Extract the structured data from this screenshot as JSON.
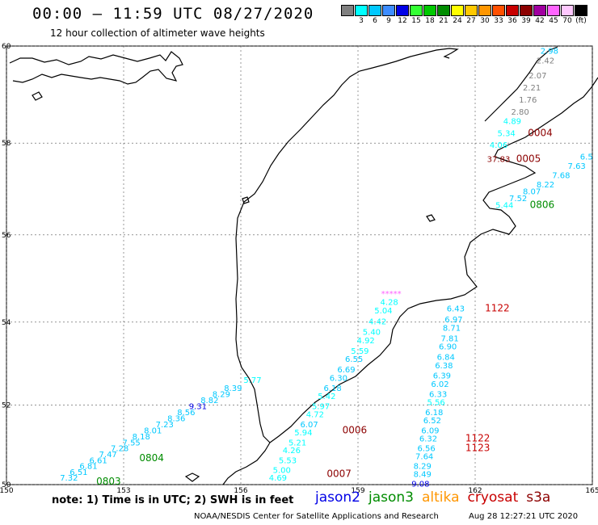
{
  "header": {
    "title": "00:00 – 11:59 UTC 08/27/2020",
    "subtitle": "12 hour collection of altimeter wave heights"
  },
  "color_scale": {
    "swatches": [
      {
        "label": "",
        "color": "#808080"
      },
      {
        "label": "3",
        "color": "#00ffff"
      },
      {
        "label": "6",
        "color": "#00c8ff"
      },
      {
        "label": "9",
        "color": "#3c8cff"
      },
      {
        "label": "12",
        "color": "#0000e6"
      },
      {
        "label": "15",
        "color": "#32ff32"
      },
      {
        "label": "18",
        "color": "#00c800"
      },
      {
        "label": "21",
        "color": "#008c00"
      },
      {
        "label": "24",
        "color": "#ffff00"
      },
      {
        "label": "27",
        "color": "#ffc800"
      },
      {
        "label": "30",
        "color": "#ff9600"
      },
      {
        "label": "33",
        "color": "#ff5000"
      },
      {
        "label": "36",
        "color": "#c80000"
      },
      {
        "label": "39",
        "color": "#8c0000"
      },
      {
        "label": "42",
        "color": "#a000a0"
      },
      {
        "label": "45",
        "color": "#ff64ff"
      },
      {
        "label": "70",
        "color": "#ffc8ff"
      },
      {
        "label": "(ft)",
        "color": "#000000"
      }
    ]
  },
  "map": {
    "lon_ticks": [
      "150",
      "153",
      "156",
      "159",
      "162",
      "165"
    ],
    "lat_ticks": [
      "60",
      "58",
      "56",
      "54",
      "52",
      "50"
    ],
    "measurements": [
      {
        "t": "2.98",
        "lon": 163.9,
        "lat": 59.85,
        "c": "#00c8ff"
      },
      {
        "t": "2.42",
        "lon": 163.8,
        "lat": 59.65,
        "c": "#808080"
      },
      {
        "t": "2.07",
        "lon": 163.6,
        "lat": 59.35,
        "c": "#808080"
      },
      {
        "t": "2.21",
        "lon": 163.45,
        "lat": 59.1,
        "c": "#808080"
      },
      {
        "t": "1.76",
        "lon": 163.35,
        "lat": 58.85,
        "c": "#808080"
      },
      {
        "t": "2.80",
        "lon": 163.15,
        "lat": 58.6,
        "c": "#808080"
      },
      {
        "t": "4.89",
        "lon": 162.95,
        "lat": 58.4,
        "c": "#00ffff"
      },
      {
        "t": "5.34",
        "lon": 162.8,
        "lat": 58.15,
        "c": "#00ffff"
      },
      {
        "t": "4.06",
        "lon": 162.6,
        "lat": 57.9,
        "c": "#00ffff"
      },
      {
        "t": "37.83",
        "lon": 162.6,
        "lat": 57.6,
        "c": "#8c0000"
      },
      {
        "t": "6.5",
        "lon": 164.85,
        "lat": 57.65,
        "c": "#00c8ff"
      },
      {
        "t": "7.63",
        "lon": 164.6,
        "lat": 57.45,
        "c": "#00c8ff"
      },
      {
        "t": "7.68",
        "lon": 164.2,
        "lat": 57.25,
        "c": "#00c8ff"
      },
      {
        "t": "8.22",
        "lon": 163.8,
        "lat": 57.05,
        "c": "#00c8ff"
      },
      {
        "t": "8.07",
        "lon": 163.45,
        "lat": 56.9,
        "c": "#00c8ff"
      },
      {
        "t": "7.52",
        "lon": 163.1,
        "lat": 56.75,
        "c": "#00c8ff"
      },
      {
        "t": "5.44",
        "lon": 162.75,
        "lat": 56.6,
        "c": "#00ffff"
      },
      {
        "t": "*****",
        "lon": 159.85,
        "lat": 54.6,
        "c": "#ff64ff"
      },
      {
        "t": "4.28",
        "lon": 159.8,
        "lat": 54.4,
        "c": "#00ffff"
      },
      {
        "t": "5.04",
        "lon": 159.65,
        "lat": 54.2,
        "c": "#00ffff"
      },
      {
        "t": "4.42",
        "lon": 159.5,
        "lat": 53.95,
        "c": "#00ffff"
      },
      {
        "t": "5.40",
        "lon": 159.35,
        "lat": 53.7,
        "c": "#00ffff"
      },
      {
        "t": "4.92",
        "lon": 159.2,
        "lat": 53.5,
        "c": "#00ffff"
      },
      {
        "t": "5.59",
        "lon": 159.05,
        "lat": 53.25,
        "c": "#00ffff"
      },
      {
        "t": "6.55",
        "lon": 158.9,
        "lat": 53.05,
        "c": "#00c8ff"
      },
      {
        "t": "6.69",
        "lon": 158.7,
        "lat": 52.8,
        "c": "#00c8ff"
      },
      {
        "t": "6.30",
        "lon": 158.5,
        "lat": 52.6,
        "c": "#00c8ff"
      },
      {
        "t": "6.18",
        "lon": 158.35,
        "lat": 52.35,
        "c": "#00c8ff"
      },
      {
        "t": "5.42",
        "lon": 158.2,
        "lat": 52.15,
        "c": "#00ffff"
      },
      {
        "t": "5.97",
        "lon": 158.05,
        "lat": 51.9,
        "c": "#00ffff"
      },
      {
        "t": "4.72",
        "lon": 157.9,
        "lat": 51.7,
        "c": "#00ffff"
      },
      {
        "t": "6.07",
        "lon": 157.75,
        "lat": 51.45,
        "c": "#00c8ff"
      },
      {
        "t": "5.94",
        "lon": 157.6,
        "lat": 51.25,
        "c": "#00ffff"
      },
      {
        "t": "5.21",
        "lon": 157.45,
        "lat": 51.0,
        "c": "#00ffff"
      },
      {
        "t": "4.26",
        "lon": 157.3,
        "lat": 50.8,
        "c": "#00ffff"
      },
      {
        "t": "5.53",
        "lon": 157.2,
        "lat": 50.55,
        "c": "#00ffff"
      },
      {
        "t": "5.00",
        "lon": 157.05,
        "lat": 50.3,
        "c": "#00ffff"
      },
      {
        "t": "4.69",
        "lon": 156.95,
        "lat": 50.1,
        "c": "#00ffff"
      },
      {
        "t": "6.43",
        "lon": 161.5,
        "lat": 54.25,
        "c": "#00c8ff"
      },
      {
        "t": "6.97",
        "lon": 161.45,
        "lat": 54.0,
        "c": "#00c8ff"
      },
      {
        "t": "8.71",
        "lon": 161.4,
        "lat": 53.8,
        "c": "#00c8ff"
      },
      {
        "t": "7.81",
        "lon": 161.35,
        "lat": 53.55,
        "c": "#00c8ff"
      },
      {
        "t": "6.90",
        "lon": 161.3,
        "lat": 53.35,
        "c": "#00c8ff"
      },
      {
        "t": "6.84",
        "lon": 161.25,
        "lat": 53.1,
        "c": "#00c8ff"
      },
      {
        "t": "6.38",
        "lon": 161.2,
        "lat": 52.9,
        "c": "#00c8ff"
      },
      {
        "t": "6.39",
        "lon": 161.15,
        "lat": 52.65,
        "c": "#00c8ff"
      },
      {
        "t": "6.02",
        "lon": 161.1,
        "lat": 52.45,
        "c": "#00c8ff"
      },
      {
        "t": "6.33",
        "lon": 161.05,
        "lat": 52.2,
        "c": "#00c8ff"
      },
      {
        "t": "5.56",
        "lon": 161.0,
        "lat": 52.0,
        "c": "#00ffff"
      },
      {
        "t": "6.18",
        "lon": 160.95,
        "lat": 51.75,
        "c": "#00c8ff"
      },
      {
        "t": "6.52",
        "lon": 160.9,
        "lat": 51.55,
        "c": "#00c8ff"
      },
      {
        "t": "6.09",
        "lon": 160.85,
        "lat": 51.3,
        "c": "#00c8ff"
      },
      {
        "t": "6.32",
        "lon": 160.8,
        "lat": 51.1,
        "c": "#00c8ff"
      },
      {
        "t": "6.56",
        "lon": 160.75,
        "lat": 50.85,
        "c": "#00c8ff"
      },
      {
        "t": "7.64",
        "lon": 160.7,
        "lat": 50.65,
        "c": "#00c8ff"
      },
      {
        "t": "8.29",
        "lon": 160.65,
        "lat": 50.4,
        "c": "#00c8ff"
      },
      {
        "t": "8.49",
        "lon": 160.65,
        "lat": 50.2,
        "c": "#00c8ff"
      },
      {
        "t": "9.08",
        "lon": 160.6,
        "lat": 49.95,
        "c": "#0000e6"
      },
      {
        "t": "5.77",
        "lon": 156.3,
        "lat": 52.55,
        "c": "#00ffff"
      },
      {
        "t": "8.39",
        "lon": 155.8,
        "lat": 52.35,
        "c": "#00c8ff"
      },
      {
        "t": "8.29",
        "lon": 155.5,
        "lat": 52.2,
        "c": "#00c8ff"
      },
      {
        "t": "8.82",
        "lon": 155.2,
        "lat": 52.05,
        "c": "#00c8ff"
      },
      {
        "t": "9.31",
        "lon": 154.9,
        "lat": 51.9,
        "c": "#0000e6"
      },
      {
        "t": "8.56",
        "lon": 154.6,
        "lat": 51.75,
        "c": "#00c8ff"
      },
      {
        "t": "8.36",
        "lon": 154.35,
        "lat": 51.6,
        "c": "#00c8ff"
      },
      {
        "t": "7.23",
        "lon": 154.05,
        "lat": 51.45,
        "c": "#00c8ff"
      },
      {
        "t": "8.01",
        "lon": 153.75,
        "lat": 51.3,
        "c": "#00c8ff"
      },
      {
        "t": "8.18",
        "lon": 153.45,
        "lat": 51.15,
        "c": "#00c8ff"
      },
      {
        "t": "7.55",
        "lon": 153.2,
        "lat": 51.0,
        "c": "#00c8ff"
      },
      {
        "t": "7.28",
        "lon": 152.9,
        "lat": 50.85,
        "c": "#00c8ff"
      },
      {
        "t": "7.47",
        "lon": 152.6,
        "lat": 50.7,
        "c": "#00c8ff"
      },
      {
        "t": "6.61",
        "lon": 152.35,
        "lat": 50.55,
        "c": "#00c8ff"
      },
      {
        "t": "6.81",
        "lon": 152.1,
        "lat": 50.4,
        "c": "#00c8ff"
      },
      {
        "t": "6.51",
        "lon": 151.85,
        "lat": 50.25,
        "c": "#00c8ff"
      },
      {
        "t": "7.32",
        "lon": 151.6,
        "lat": 50.1,
        "c": "#00c8ff"
      }
    ],
    "pass_codes": [
      {
        "t": "0004",
        "lon": 163.35,
        "lat": 58.15,
        "c": "#8c0000"
      },
      {
        "t": "0005",
        "lon": 163.05,
        "lat": 57.6,
        "c": "#8c0000"
      },
      {
        "t": "0806",
        "lon": 163.4,
        "lat": 56.6,
        "c": "#008c00"
      },
      {
        "t": "1122",
        "lon": 162.25,
        "lat": 54.25,
        "c": "#c80000"
      },
      {
        "t": "0006",
        "lon": 158.6,
        "lat": 51.3,
        "c": "#8c0000"
      },
      {
        "t": "1122",
        "lon": 161.75,
        "lat": 51.1,
        "c": "#c80000"
      },
      {
        "t": "1123",
        "lon": 161.75,
        "lat": 50.85,
        "c": "#c80000"
      },
      {
        "t": "0007",
        "lon": 158.2,
        "lat": 50.2,
        "c": "#8c0000"
      },
      {
        "t": "0804",
        "lon": 153.4,
        "lat": 50.6,
        "c": "#008c00"
      },
      {
        "t": "0803",
        "lon": 152.3,
        "lat": 50.0,
        "c": "#008c00"
      }
    ]
  },
  "footer": {
    "note": "note: 1) Time is in UTC; 2) SWH is in feet",
    "legend": [
      {
        "name": "jason2",
        "color": "#0000e6"
      },
      {
        "name": "jason3",
        "color": "#008c00"
      },
      {
        "name": "altika",
        "color": "#ff9600"
      },
      {
        "name": "cryosat",
        "color": "#c80000"
      },
      {
        "name": "s3a",
        "color": "#8c0000"
      }
    ],
    "credit": "NOAA/NESDIS Center for Satellite Applications and Research",
    "timestamp": "Aug 28 12:27:21 UTC 2020"
  }
}
